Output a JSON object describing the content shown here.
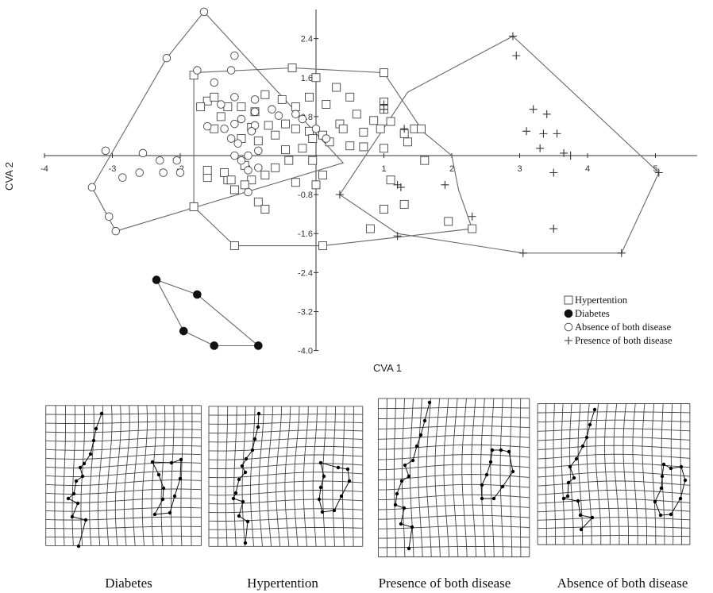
{
  "chart_data": [
    {
      "type": "scatter",
      "title": "",
      "xlabel": "CVA 1",
      "ylabel": "CVA 2",
      "xlim": [
        -4,
        5.5
      ],
      "ylim": [
        -4,
        3
      ],
      "x_ticks": [
        "-4",
        "-3",
        "-2",
        "-1",
        "1",
        "2",
        "3",
        "4",
        "5"
      ],
      "y_ticks": [
        "2.4",
        "1.6",
        "0.8",
        "-0.8",
        "-1.6",
        "-2.4",
        "-3.2",
        "-4.0"
      ],
      "legend_position": "bottom-right",
      "series": [
        {
          "name": "Hypertention",
          "marker": "open-square",
          "points": [
            [
              -1.8,
              1.65
            ],
            [
              -1.6,
              1.12
            ],
            [
              -1.5,
              1.2
            ],
            [
              -1.7,
              1.0
            ],
            [
              -1.4,
              0.8
            ],
            [
              -1.5,
              0.55
            ],
            [
              -1.3,
              1.0
            ],
            [
              -1.1,
              1.0
            ],
            [
              -0.9,
              0.9
            ],
            [
              -0.75,
              1.25
            ],
            [
              -0.5,
              1.15
            ],
            [
              -0.3,
              1.0
            ],
            [
              -0.1,
              1.2
            ],
            [
              -0.45,
              0.65
            ],
            [
              -0.7,
              0.62
            ],
            [
              -0.95,
              0.58
            ],
            [
              -1.1,
              0.35
            ],
            [
              -0.85,
              0.3
            ],
            [
              -0.6,
              0.42
            ],
            [
              -0.3,
              0.55
            ],
            [
              -0.1,
              0.5
            ],
            [
              0.15,
              1.05
            ],
            [
              0.0,
              1.6
            ],
            [
              -0.35,
              1.8
            ],
            [
              0.3,
              1.4
            ],
            [
              0.5,
              1.2
            ],
            [
              0.6,
              0.85
            ],
            [
              0.35,
              0.65
            ],
            [
              0.1,
              0.42
            ],
            [
              0.2,
              0.28
            ],
            [
              -0.05,
              0.35
            ],
            [
              0.4,
              0.55
            ],
            [
              0.7,
              0.48
            ],
            [
              0.85,
              0.72
            ],
            [
              0.95,
              0.55
            ],
            [
              0.7,
              0.18
            ],
            [
              0.5,
              0.2
            ],
            [
              -0.2,
              0.15
            ],
            [
              -0.45,
              0.12
            ],
            [
              -0.4,
              -0.1
            ],
            [
              -0.05,
              -0.1
            ],
            [
              0.1,
              -0.4
            ],
            [
              0.0,
              -0.6
            ],
            [
              -0.3,
              -0.55
            ],
            [
              -0.6,
              -0.25
            ],
            [
              -0.75,
              -0.4
            ],
            [
              -0.95,
              -0.5
            ],
            [
              -1.3,
              -0.5
            ],
            [
              -1.35,
              -0.35
            ],
            [
              -1.6,
              -0.45
            ],
            [
              -1.6,
              -0.3
            ],
            [
              -1.2,
              -0.7
            ],
            [
              -1.05,
              -0.6
            ],
            [
              -0.85,
              -0.95
            ],
            [
              -0.75,
              -1.1
            ],
            [
              -1.05,
              -0.2
            ],
            [
              -1.25,
              -0.5
            ],
            [
              1.0,
              1.1
            ],
            [
              1.0,
              0.95
            ],
            [
              1.1,
              0.7
            ],
            [
              1.3,
              0.45
            ],
            [
              1.45,
              0.55
            ],
            [
              1.55,
              0.55
            ],
            [
              1.35,
              0.28
            ],
            [
              1.6,
              -0.1
            ],
            [
              1.0,
              0.15
            ],
            [
              1.1,
              -0.5
            ],
            [
              1.0,
              -1.1
            ],
            [
              1.3,
              -1.0
            ],
            [
              0.8,
              -1.5
            ],
            [
              1.95,
              -1.35
            ],
            [
              2.3,
              -1.5
            ],
            [
              1.0,
              1.7
            ],
            [
              -1.8,
              -1.05
            ],
            [
              -1.2,
              -1.85
            ],
            [
              0.1,
              -1.85
            ]
          ],
          "hull": [
            [
              -1.8,
              1.7
            ],
            [
              -0.35,
              1.8
            ],
            [
              1.0,
              1.7
            ],
            [
              1.55,
              0.55
            ],
            [
              1.55,
              0.52
            ],
            [
              2.0,
              0.0
            ],
            [
              2.1,
              -0.7
            ],
            [
              2.3,
              -1.5
            ],
            [
              0.1,
              -1.85
            ],
            [
              -1.2,
              -1.85
            ],
            [
              -1.8,
              -1.05
            ]
          ]
        },
        {
          "name": "Diabetes",
          "marker": "filled-circle",
          "points": [
            [
              -2.35,
              -2.55
            ],
            [
              -1.75,
              -2.85
            ],
            [
              -1.95,
              -3.6
            ],
            [
              -1.5,
              -3.9
            ],
            [
              -0.85,
              -3.9
            ]
          ],
          "hull": [
            [
              -2.35,
              -2.55
            ],
            [
              -1.75,
              -2.85
            ],
            [
              -0.85,
              -3.9
            ],
            [
              -1.5,
              -3.9
            ],
            [
              -1.95,
              -3.6
            ]
          ]
        },
        {
          "name": "Absence of both disease",
          "marker": "open-circle",
          "points": [
            [
              -1.65,
              2.95
            ],
            [
              -2.2,
              2.0
            ],
            [
              -1.2,
              2.05
            ],
            [
              -1.25,
              1.75
            ],
            [
              -1.75,
              1.75
            ],
            [
              -1.5,
              1.5
            ],
            [
              -1.2,
              1.2
            ],
            [
              -1.4,
              1.05
            ],
            [
              -0.9,
              1.15
            ],
            [
              -0.9,
              0.9
            ],
            [
              -1.1,
              0.75
            ],
            [
              -0.65,
              0.95
            ],
            [
              -0.55,
              0.82
            ],
            [
              -0.9,
              0.62
            ],
            [
              -0.95,
              0.5
            ],
            [
              -1.2,
              0.65
            ],
            [
              -1.6,
              0.6
            ],
            [
              -1.35,
              0.55
            ],
            [
              -1.15,
              0.25
            ],
            [
              -0.85,
              0.1
            ],
            [
              -1.2,
              0.0
            ],
            [
              -1.0,
              0.0
            ],
            [
              -1.1,
              -0.1
            ],
            [
              -1.0,
              -0.3
            ],
            [
              -0.85,
              -0.25
            ],
            [
              -1.0,
              -0.75
            ],
            [
              -2.55,
              0.05
            ],
            [
              -2.3,
              -0.1
            ],
            [
              -2.05,
              -0.1
            ],
            [
              -2.25,
              -0.35
            ],
            [
              -2.0,
              -0.35
            ],
            [
              -2.6,
              -0.35
            ],
            [
              -2.85,
              -0.45
            ],
            [
              -3.1,
              0.1
            ],
            [
              -3.3,
              -0.65
            ],
            [
              -3.05,
              -1.25
            ],
            [
              -2.95,
              -1.55
            ],
            [
              -0.3,
              0.85
            ],
            [
              0.0,
              0.55
            ],
            [
              0.15,
              0.35
            ],
            [
              -1.25,
              0.35
            ],
            [
              -0.2,
              0.75
            ]
          ],
          "hull": [
            [
              -1.65,
              2.95
            ],
            [
              0.4,
              -0.15
            ],
            [
              -2.95,
              -1.55
            ],
            [
              -3.3,
              -0.65
            ],
            [
              -2.2,
              2.0
            ]
          ]
        },
        {
          "name": "Presence of both disease",
          "marker": "plus",
          "points": [
            [
              2.9,
              2.45
            ],
            [
              2.95,
              2.05
            ],
            [
              3.2,
              0.95
            ],
            [
              3.4,
              0.85
            ],
            [
              3.35,
              0.45
            ],
            [
              3.55,
              0.45
            ],
            [
              3.3,
              0.15
            ],
            [
              3.65,
              0.05
            ],
            [
              3.5,
              -0.35
            ],
            [
              3.5,
              -1.5
            ],
            [
              3.75,
              0.0
            ],
            [
              1.9,
              -0.6
            ],
            [
              1.2,
              -0.6
            ],
            [
              1.25,
              -0.65
            ],
            [
              1.0,
              1.05
            ],
            [
              1.0,
              0.95
            ],
            [
              1.3,
              0.55
            ],
            [
              0.35,
              -0.8
            ],
            [
              2.3,
              -1.25
            ],
            [
              1.2,
              -1.65
            ],
            [
              3.05,
              -2.0
            ],
            [
              4.5,
              -2.0
            ],
            [
              5.05,
              -0.35
            ],
            [
              3.1,
              0.5
            ]
          ],
          "hull": [
            [
              2.9,
              2.45
            ],
            [
              5.05,
              -0.35
            ],
            [
              4.5,
              -2.0
            ],
            [
              3.05,
              -2.0
            ],
            [
              1.2,
              -1.6
            ],
            [
              0.35,
              -0.8
            ],
            [
              1.35,
              1.3
            ]
          ]
        }
      ]
    }
  ],
  "captions": [
    "Diabetes",
    "Hypertention",
    "Presence of both disease",
    "Absence of both disease"
  ]
}
